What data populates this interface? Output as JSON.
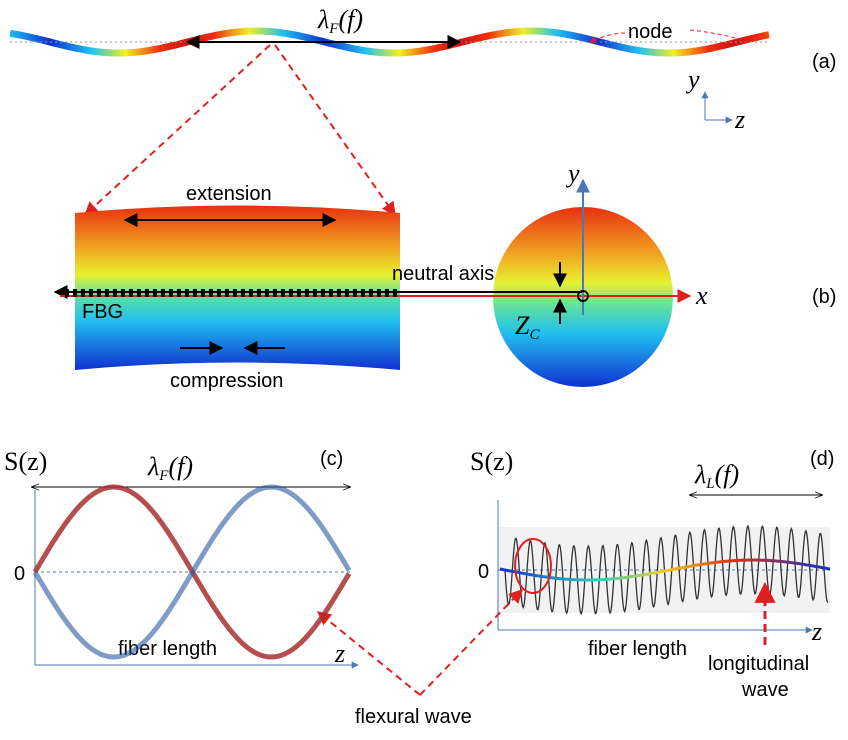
{
  "panels": {
    "a": "(a)",
    "b": "(b)",
    "c": "(c)",
    "d": "(d)"
  },
  "panel_a": {
    "wavelength": {
      "symbol": "λ",
      "subscript": "F",
      "argument": "(f)"
    },
    "node": "node",
    "axis_y": "y",
    "axis_z": "z"
  },
  "panel_b": {
    "extension": "extension",
    "neutral_axis": "neutral axis",
    "fbg": "FBG",
    "offset": {
      "symbol": "Z",
      "subscript": "C"
    },
    "compression": "compression",
    "axis_y": "y",
    "axis_x": "x"
  },
  "panel_c": {
    "y_label": "S(z)",
    "wavelength": {
      "symbol": "λ",
      "subscript": "F",
      "argument": "(f)"
    },
    "zero": "0",
    "x_axis": "z",
    "x_label": "fiber length"
  },
  "panel_d": {
    "y_label": "S(z)",
    "wavelength": {
      "symbol": "λ",
      "subscript": "L",
      "argument": "(f)"
    },
    "zero": "0",
    "x_axis": "z",
    "x_label": "fiber length"
  },
  "annotations": {
    "flexural": "flexural wave",
    "longitudinal": [
      "longitudinal",
      "wave"
    ]
  }
}
